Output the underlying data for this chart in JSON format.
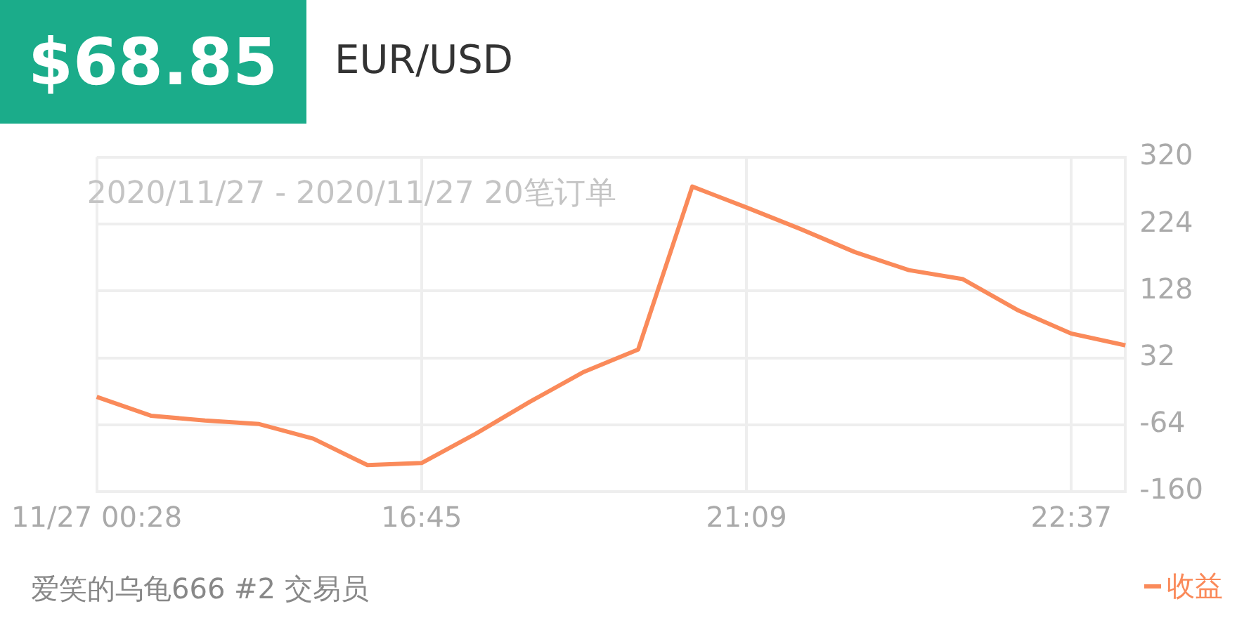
{
  "chart_data": {
    "type": "line",
    "title": "$68.85",
    "subtitle": "EUR/USD",
    "annotations": [
      "2020/11/27 - 2020/11/27 20笔订单",
      "爱笑的乌龟666 #2 交易员"
    ],
    "categories": [
      "11/27 00:28",
      null,
      null,
      null,
      null,
      null,
      "16:45",
      null,
      null,
      null,
      null,
      null,
      "21:09",
      null,
      null,
      null,
      null,
      null,
      "22:37",
      null
    ],
    "series": [
      {
        "name": "收益",
        "color": "#fa8a5a",
        "values": [
          -24,
          -51,
          -58,
          -63,
          -84,
          -122,
          -119,
          -77,
          -31,
          12,
          44,
          278,
          248,
          217,
          184,
          158,
          145,
          101,
          67,
          50
        ]
      }
    ],
    "ylim": [
      -160,
      320
    ],
    "yticks": [
      -160,
      -64,
      32,
      128,
      224,
      320
    ],
    "grid": true,
    "legend": "bottom right",
    "marker": "none",
    "line_style": "solid"
  }
}
